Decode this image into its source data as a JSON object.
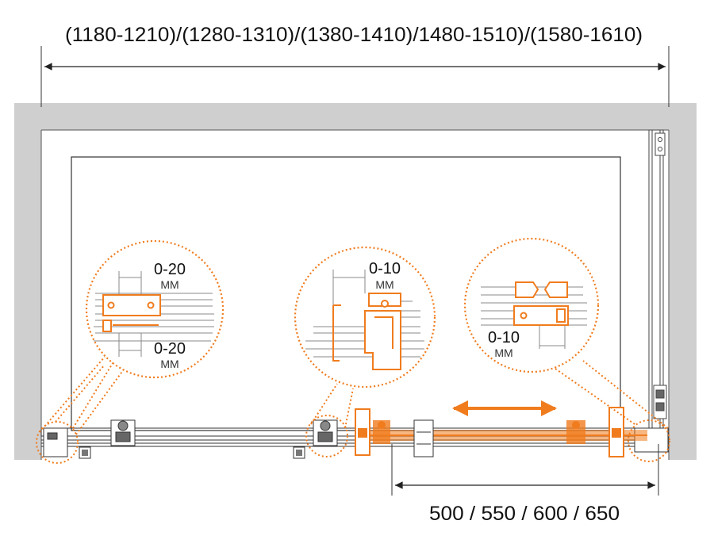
{
  "dimensions": {
    "total_width": "(1180-1210)/(1280-1310)/(1380-1410)/1480-1510)/(1580-1610)",
    "door_width": "500 / 550 / 600 / 650"
  },
  "details": {
    "left": {
      "top_range": "0-20",
      "top_unit": "ММ",
      "bottom_range": "0-20",
      "bottom_unit": "ММ"
    },
    "middle": {
      "range": "0-10",
      "unit": "ММ"
    },
    "right": {
      "range": "0-10",
      "unit": "ММ"
    }
  },
  "colors": {
    "accent": "#f07c1e",
    "wall": "#cfcfcf",
    "line": "#333333",
    "detail_line": "#888888"
  }
}
